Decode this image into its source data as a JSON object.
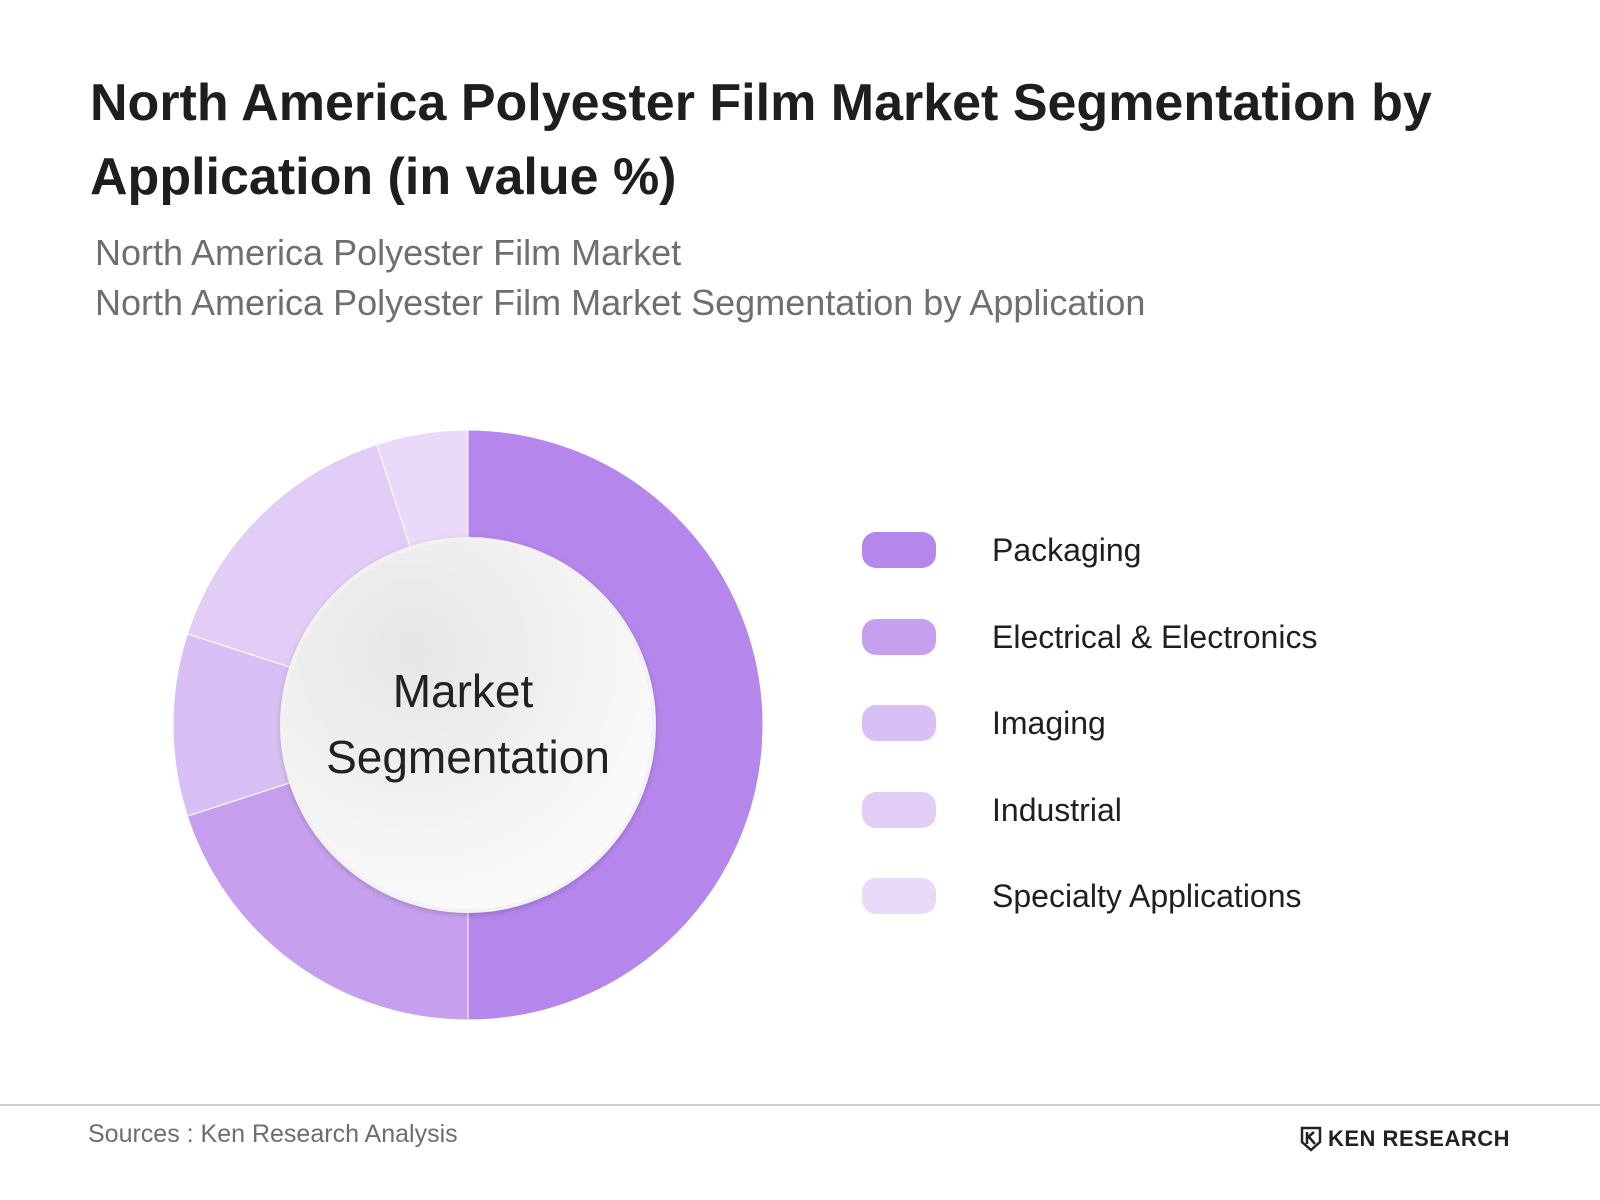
{
  "chart_data": {
    "type": "pie",
    "title": "North America Polyester Film Market Segmentation by Application (in value %)",
    "subtitle_lines": [
      "North America Polyester Film Market",
      "North America Polyester Film Market Segmentation by Application"
    ],
    "center_label": [
      "Market",
      "Segmentation"
    ],
    "categories": [
      "Packaging",
      "Electrical & Electronics",
      "Imaging",
      "Industrial",
      "Specialty Applications"
    ],
    "values": [
      50,
      20,
      10,
      15,
      5
    ],
    "colors": [
      "#b586ec",
      "#c6a0ee",
      "#d9c0f4",
      "#e2cdf6",
      "#ead9f8"
    ],
    "legend_position": "right"
  },
  "footer": {
    "source": "Sources : Ken Research Analysis",
    "brand": "KEN RESEARCH"
  }
}
